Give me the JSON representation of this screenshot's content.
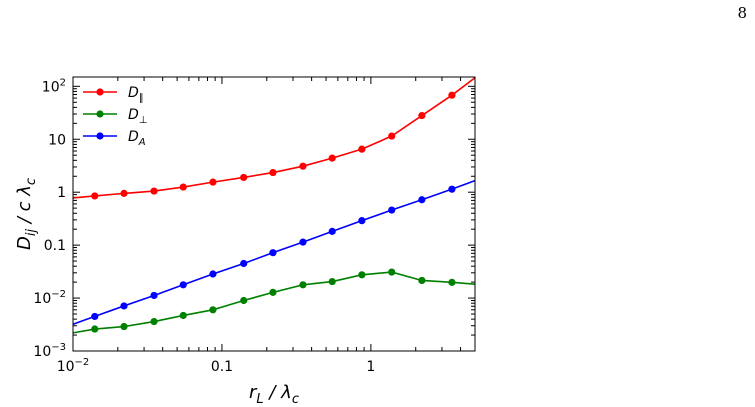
{
  "page": {
    "number": "8"
  },
  "chart_data": {
    "type": "line",
    "xscale": "log",
    "yscale": "log",
    "xlabel": "r_L / λ_c",
    "ylabel": "D_ij / c λ_c",
    "xlim": [
      0.01,
      5.0
    ],
    "ylim": [
      0.001,
      150
    ],
    "x_ticks": [
      {
        "value": 0.01,
        "mant": "10",
        "exp": "−2"
      },
      {
        "value": 0.1,
        "mant": "0.1",
        "exp": ""
      },
      {
        "value": 1,
        "mant": "1",
        "exp": ""
      }
    ],
    "y_ticks": [
      {
        "value": 0.001,
        "mant": "10",
        "exp": "−3"
      },
      {
        "value": 0.01,
        "mant": "10",
        "exp": "−2"
      },
      {
        "value": 0.1,
        "mant": "0.1",
        "exp": ""
      },
      {
        "value": 1,
        "mant": "1",
        "exp": ""
      },
      {
        "value": 10,
        "mant": "10",
        "exp": ""
      },
      {
        "value": 100,
        "mant": "10",
        "exp": "2"
      }
    ],
    "legend": {
      "position": "top-left"
    },
    "x": [
      0.014,
      0.022,
      0.035,
      0.055,
      0.087,
      0.14,
      0.22,
      0.35,
      0.55,
      0.87,
      1.38,
      2.2,
      3.5
    ],
    "series": [
      {
        "name": "D_∥",
        "base": "D",
        "sub": "∥",
        "color": "#ff0000",
        "values": [
          0.85,
          0.95,
          1.05,
          1.25,
          1.55,
          1.9,
          2.35,
          3.1,
          4.4,
          6.5,
          11.5,
          28,
          68
        ],
        "line_start": 0.78,
        "line_end": 145
      },
      {
        "name": "D_⊥",
        "base": "D",
        "sub": "⊥",
        "color": "#008000",
        "values": [
          0.0026,
          0.0029,
          0.0036,
          0.0047,
          0.006,
          0.009,
          0.0128,
          0.0178,
          0.0205,
          0.0275,
          0.031,
          0.0215,
          0.0198
        ],
        "line_start": 0.0022,
        "line_end": 0.0183
      },
      {
        "name": "D_A",
        "base": "D",
        "sub": "A",
        "color": "#0000ff",
        "values": [
          0.0045,
          0.0071,
          0.0112,
          0.0178,
          0.0285,
          0.045,
          0.072,
          0.114,
          0.182,
          0.29,
          0.46,
          0.72,
          1.14
        ],
        "line_start": 0.0032,
        "line_end": 1.65
      }
    ]
  }
}
